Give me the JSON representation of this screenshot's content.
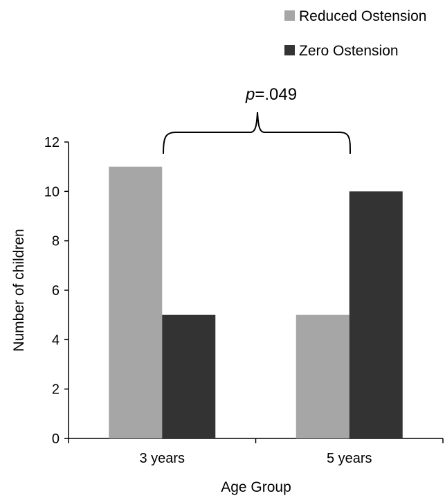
{
  "chart_data": {
    "type": "bar",
    "categories": [
      "3 years",
      "5 years"
    ],
    "series": [
      {
        "name": "Reduced Ostension",
        "values": [
          11,
          5
        ],
        "color": "#a6a6a6"
      },
      {
        "name": "Zero Ostension",
        "values": [
          5,
          10
        ],
        "color": "#333333"
      }
    ],
    "xlabel": "Age Group",
    "ylabel": "Number of children",
    "ylim": [
      0,
      12
    ],
    "yticks": [
      0,
      2,
      4,
      6,
      8,
      10,
      12
    ],
    "grid": false,
    "legend_position": "top-right",
    "annotation": {
      "p_symbol": "p",
      "p_value": "=.049"
    }
  }
}
